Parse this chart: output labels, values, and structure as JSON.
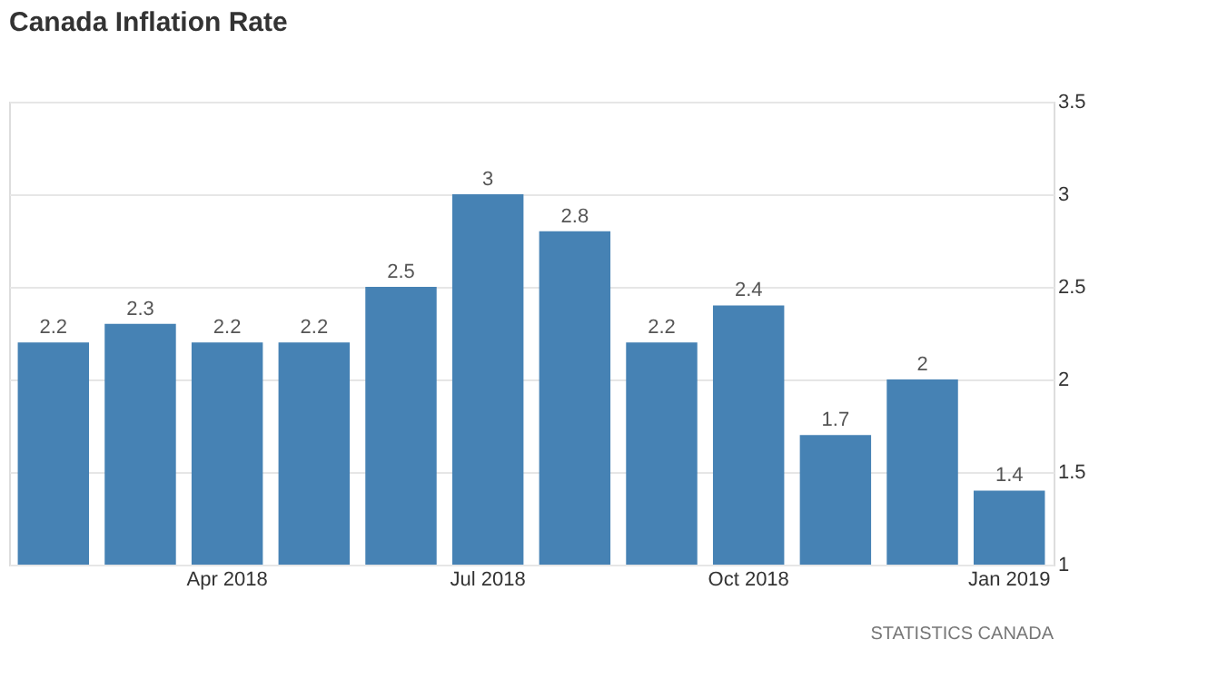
{
  "chart_data": {
    "type": "bar",
    "title": "Canada Inflation Rate",
    "categories": [
      null,
      null,
      "Apr 2018",
      null,
      null,
      "Jul 2018",
      null,
      null,
      "Oct 2018",
      null,
      null,
      "Jan 2019"
    ],
    "values": [
      2.2,
      2.3,
      2.2,
      2.2,
      2.5,
      3,
      2.8,
      2.2,
      2.4,
      1.7,
      2,
      1.4
    ],
    "color": "#4682b4",
    "ylim": [
      1,
      3.5
    ],
    "yticks": [
      1,
      1.5,
      2,
      2.5,
      3,
      3.5
    ],
    "grid": "y",
    "data_labels": true,
    "annotations": [
      "STATISTICS CANADA"
    ]
  }
}
